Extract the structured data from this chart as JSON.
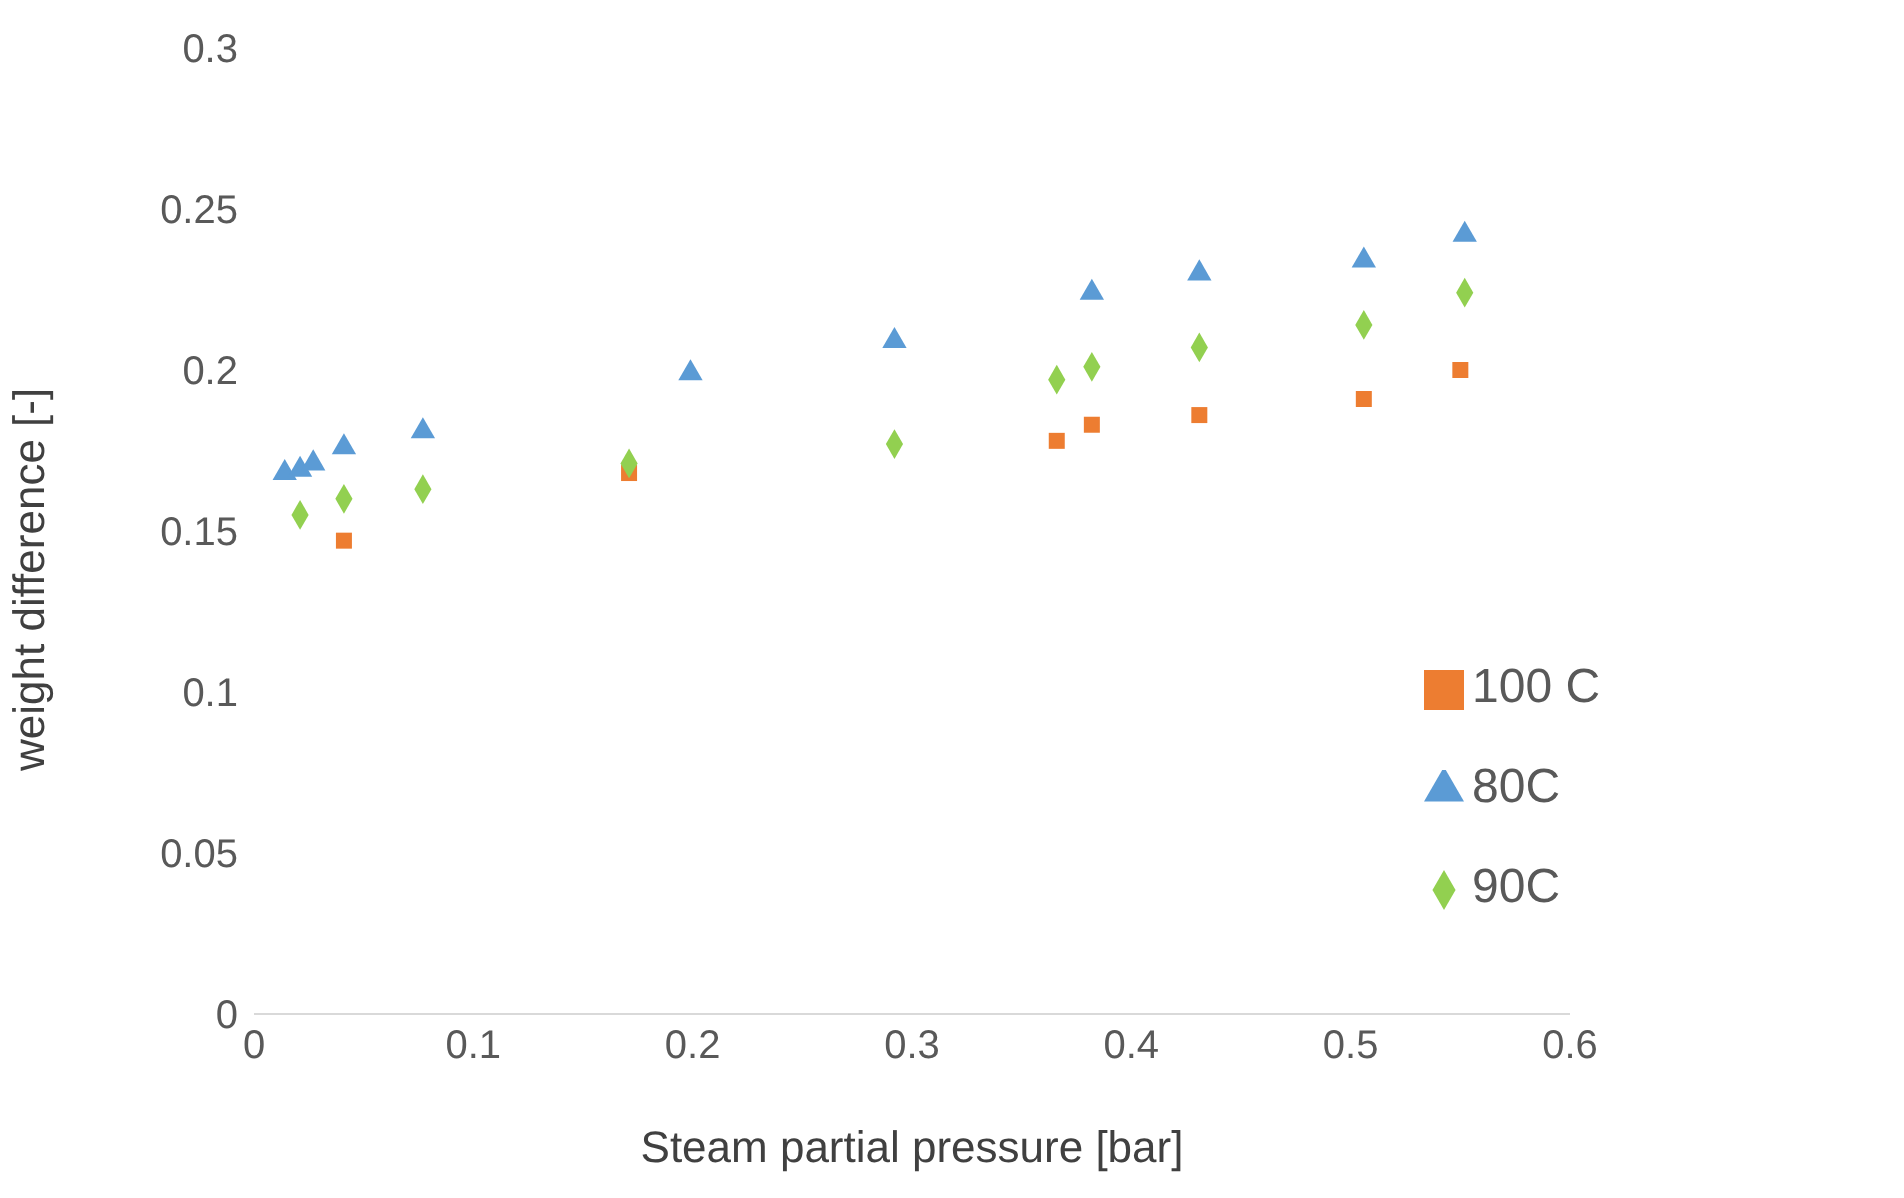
{
  "chart_data": {
    "type": "scatter",
    "xlabel": "Steam partial pressure [bar]",
    "ylabel": "weight difference [-]",
    "xlim": [
      0,
      0.6
    ],
    "xticks": [
      0,
      0.1,
      0.2,
      0.3,
      0.4,
      0.5,
      0.6
    ],
    "ylim": [
      0,
      0.3
    ],
    "yticks": [
      0,
      0.05,
      0.1,
      0.15,
      0.2,
      0.25,
      0.3
    ],
    "grid": false,
    "legend": "bottom right",
    "series": [
      {
        "name": "100 C",
        "color": "#ed7d31",
        "marker": "square",
        "x": [
          0.041,
          0.171,
          0.366,
          0.382,
          0.431,
          0.506,
          0.55
        ],
        "values": [
          0.147,
          0.168,
          0.178,
          0.183,
          0.186,
          0.191,
          0.2
        ]
      },
      {
        "name": "90C",
        "color": "#92d050",
        "marker": "diamond",
        "x": [
          0.021,
          0.041,
          0.077,
          0.171,
          0.292,
          0.366,
          0.382,
          0.431,
          0.506,
          0.552
        ],
        "values": [
          0.155,
          0.16,
          0.163,
          0.171,
          0.177,
          0.197,
          0.201,
          0.207,
          0.214,
          0.224
        ]
      },
      {
        "name": "80C",
        "color": "#5b9bd5",
        "marker": "triangle",
        "x": [
          0.014,
          0.021,
          0.027,
          0.041,
          0.077,
          0.199,
          0.292,
          0.382,
          0.431,
          0.506,
          0.552
        ],
        "values": [
          0.168,
          0.169,
          0.171,
          0.176,
          0.181,
          0.199,
          0.209,
          0.224,
          0.23,
          0.234,
          0.242
        ]
      }
    ]
  }
}
